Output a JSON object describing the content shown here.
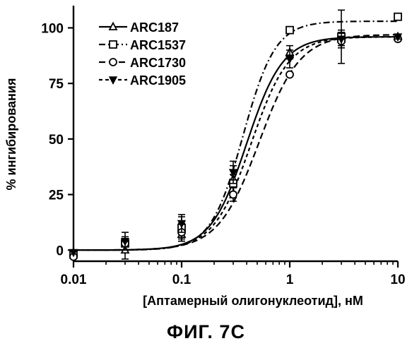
{
  "figure": {
    "caption": "ФИГ. 7C"
  },
  "chart_data": {
    "type": "scatter",
    "xlabel": "[Аптамерный олигонуклеотид], нМ",
    "ylabel": "% ингибирования",
    "xscale": "log",
    "xlim": [
      0.01,
      10
    ],
    "ylim": [
      -5,
      110
    ],
    "x_ticks": [
      0.01,
      0.1,
      1,
      10
    ],
    "x_tick_labels": [
      "0.01",
      "0.1",
      "1",
      "10"
    ],
    "y_ticks": [
      0,
      25,
      50,
      75,
      100
    ],
    "y_tick_labels": [
      "0",
      "25",
      "50",
      "75",
      "100"
    ],
    "grid": false,
    "legend_position": "top-left",
    "colors": {
      "ink": "#000000",
      "background": "#ffffff"
    },
    "series": [
      {
        "name": "ARC187",
        "marker": "triangle-up",
        "line": "solid",
        "x": [
          0.01,
          0.03,
          0.1,
          0.3,
          1,
          3,
          10
        ],
        "y": [
          -1,
          0,
          7,
          32,
          89,
          95,
          96
        ],
        "err": [
          0,
          4,
          3,
          6,
          3,
          3,
          1
        ],
        "fit": {
          "bottom": 0,
          "top": 96,
          "ec50": 0.4,
          "hill": 2.6
        }
      },
      {
        "name": "ARC1537",
        "marker": "square",
        "line": "dashdot",
        "x": [
          0.01,
          0.03,
          0.1,
          0.3,
          1,
          3,
          10
        ],
        "y": [
          -2,
          3,
          10,
          30,
          99,
          96,
          105
        ],
        "err": [
          0,
          0,
          5,
          4,
          0,
          12,
          0
        ],
        "fit": {
          "bottom": 0,
          "top": 103,
          "ec50": 0.37,
          "hill": 2.9
        }
      },
      {
        "name": "ARC1730",
        "marker": "circle",
        "line": "dashed",
        "x": [
          0.01,
          0.03,
          0.1,
          0.3,
          1,
          3,
          10
        ],
        "y": [
          -3,
          3,
          8,
          25,
          79,
          94,
          95
        ],
        "err": [
          0,
          3,
          4,
          3,
          0,
          2,
          1
        ],
        "fit": {
          "bottom": 0,
          "top": 97,
          "ec50": 0.52,
          "hill": 2.3
        }
      },
      {
        "name": "ARC1905",
        "marker": "triangle-down",
        "line": "shortdash",
        "x": [
          0.01,
          0.03,
          0.1,
          0.3,
          1,
          3,
          10
        ],
        "y": [
          -1,
          4,
          12,
          35,
          86,
          95,
          96
        ],
        "err": [
          0,
          4,
          4,
          5,
          4,
          4,
          1
        ],
        "fit": {
          "bottom": 0,
          "top": 96,
          "ec50": 0.44,
          "hill": 2.5
        }
      }
    ]
  }
}
